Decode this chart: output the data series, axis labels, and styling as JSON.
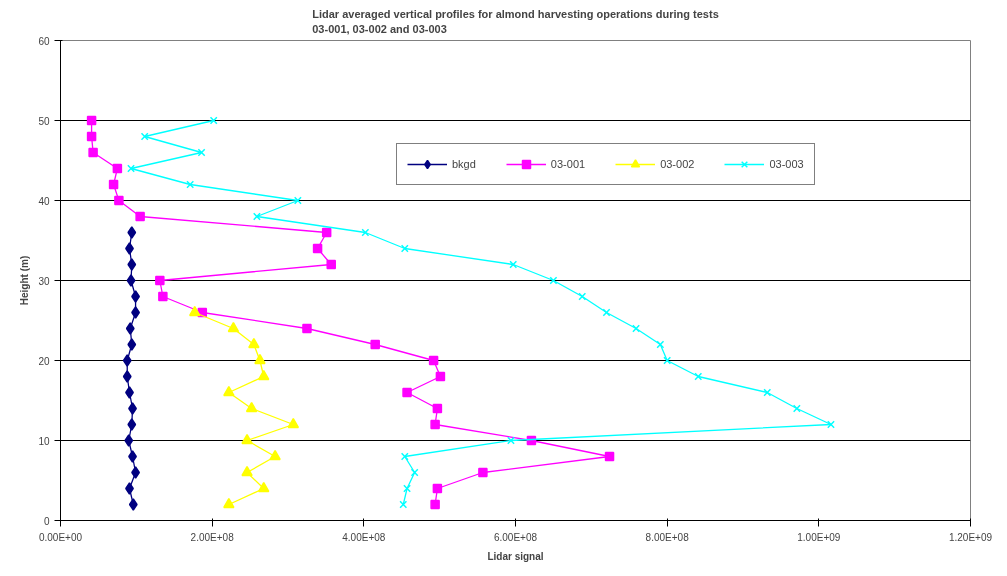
{
  "chart_data": {
    "type": "line",
    "title": "Lidar averaged vertical profiles for almond harvesting operations during tests\n03-001, 03-002 and 03-003",
    "xlabel": "Lidar signal",
    "ylabel": "Height (m)",
    "xlim": [
      0,
      1200000000
    ],
    "xticks": [
      {
        "value": 0,
        "label": "0.00E+00"
      },
      {
        "value": 200000000,
        "label": "2.00E+08"
      },
      {
        "value": 400000000,
        "label": "4.00E+08"
      },
      {
        "value": 600000000,
        "label": "6.00E+08"
      },
      {
        "value": 800000000,
        "label": "8.00E+08"
      },
      {
        "value": 1000000000,
        "label": "1.00E+09"
      },
      {
        "value": 1200000000,
        "label": "1.20E+09"
      }
    ],
    "ylim": [
      0,
      60
    ],
    "yticks": [
      0,
      10,
      20,
      30,
      40,
      50,
      60
    ],
    "grid": "y",
    "legend": "top right",
    "series": [
      {
        "name": "bkgd",
        "color": "#000080",
        "marker": "diamond",
        "x": [
          94000000,
          91000000,
          94000000,
          93000000,
          99000000,
          99000000,
          92000000,
          94000000,
          88000000,
          88000000,
          91000000,
          95000000,
          94000000,
          90000000,
          95000000,
          99000000,
          91000000,
          96000000
        ],
        "values": [
          36,
          34,
          32,
          30,
          28,
          26,
          24,
          22,
          20,
          18,
          16,
          14,
          12,
          10,
          8,
          6,
          4,
          2
        ]
      },
      {
        "name": "03-001",
        "color": "#ff00ff",
        "marker": "square",
        "x": [
          41000000,
          41000000,
          43000000,
          75000000,
          70000000,
          77000000,
          105000000,
          351000000,
          339000000,
          357000000,
          131000000,
          135000000,
          187000000,
          325000000,
          415000000,
          492000000,
          501000000,
          457000000,
          497000000,
          494000000,
          621000000,
          724000000,
          557000000,
          497000000,
          494000000
        ],
        "values": [
          50,
          48,
          46,
          44,
          42,
          40,
          38,
          36,
          34,
          32,
          30,
          28,
          26,
          24,
          22,
          20,
          18,
          16,
          14,
          12,
          10,
          8,
          6,
          4,
          2
        ]
      },
      {
        "name": "03-002",
        "color": "#ffff00",
        "marker": "triangle",
        "x": [
          177000000,
          228000000,
          255000000,
          263000000,
          268000000,
          222000000,
          252000000,
          307000000,
          246000000,
          283000000,
          246000000,
          268000000,
          222000000
        ],
        "values": [
          26,
          24,
          22,
          20,
          18,
          16,
          14,
          12,
          10,
          8,
          6,
          4,
          2
        ]
      },
      {
        "name": "03-003",
        "color": "#00ffff",
        "marker": "cross",
        "x": [
          202000000,
          111000000,
          186000000,
          93000000,
          171000000,
          313000000,
          259000000,
          402000000,
          454000000,
          597000000,
          650000000,
          688000000,
          720000000,
          759000000,
          791000000,
          800000000,
          841000000,
          932000000,
          971000000,
          1016000000,
          594000000,
          454000000,
          467000000,
          457000000,
          452000000
        ],
        "values": [
          50,
          48,
          46,
          44,
          42,
          40,
          38,
          36,
          34,
          32,
          30,
          28,
          26,
          24,
          22,
          20,
          18,
          16,
          14,
          12,
          10,
          8,
          6,
          4,
          2
        ]
      }
    ]
  }
}
